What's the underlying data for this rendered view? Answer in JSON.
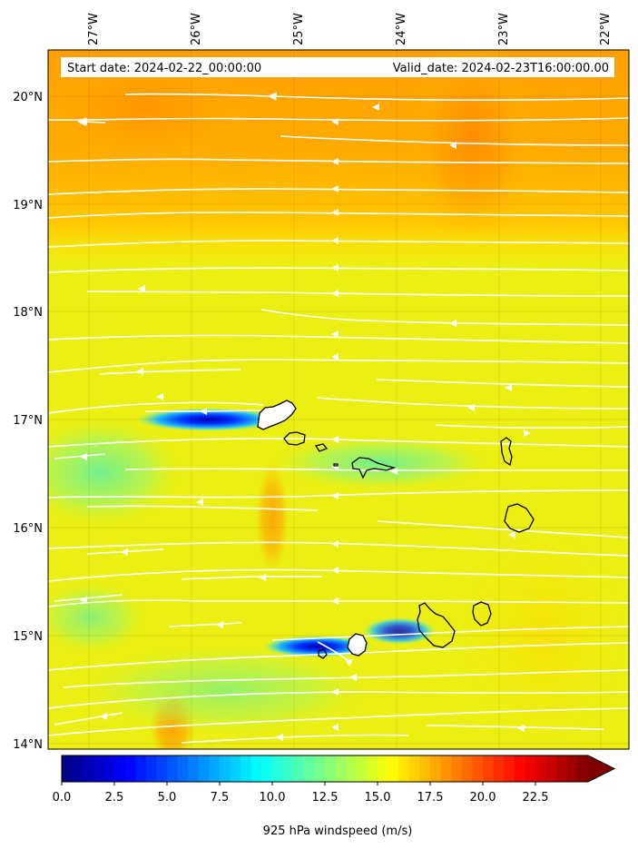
{
  "map": {
    "start_date_text": "Start date: 2024-02-22_00:00:00",
    "valid_date_text": "Valid_date: 2024-02-23T16:00:00.00",
    "variable": "925 hPa windspeed",
    "lon_labels": [
      "27°W",
      "26°W",
      "25°W",
      "24°W",
      "23°W",
      "22°W"
    ],
    "lat_labels": [
      "20°N",
      "19°N",
      "18°N",
      "17°N",
      "16°N",
      "15°N",
      "14°N"
    ],
    "lon_range": [
      -27.4,
      -21.7
    ],
    "lat_range": [
      13.95,
      20.45
    ],
    "field_colors": {
      "background": "#ecef12",
      "orange_band": "#ffa600",
      "yellow": "#ffe000",
      "calm_blue": "#0018ff",
      "moderate_cyan": "#40ffd0",
      "streamline": "#ffffff",
      "coastline": "#000000"
    },
    "streamline_direction": "east-to-west (easterly trade winds)"
  },
  "colorbar": {
    "label": "925 hPa windspeed (m/s)",
    "ticks": [
      "0.0",
      "2.5",
      "5.0",
      "7.5",
      "10.0",
      "12.5",
      "15.0",
      "17.5",
      "20.0",
      "22.5"
    ],
    "min": 0,
    "max": 25,
    "extend": "max",
    "colormap": "jet"
  }
}
